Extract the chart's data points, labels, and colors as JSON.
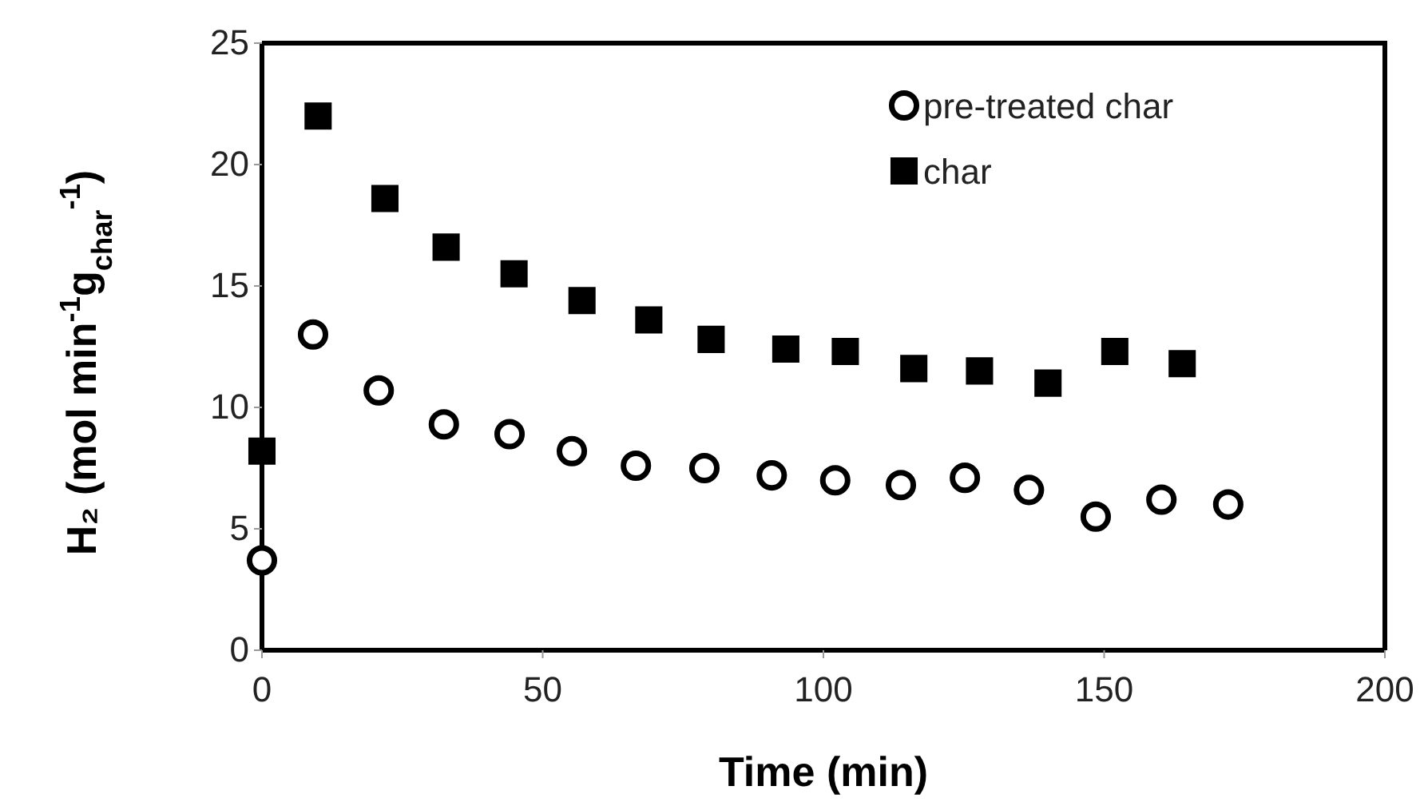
{
  "chart_data": {
    "type": "scatter",
    "xlabel": "Time (min)",
    "ylabel": "H₂ (mol min$^{-1}$g$_{char}$$^{-1}$)",
    "xlim": [
      0,
      200
    ],
    "xticks": [
      0,
      50,
      100,
      150,
      200
    ],
    "ylim": [
      0,
      25
    ],
    "yticks": [
      0,
      5,
      10,
      15,
      20,
      25
    ],
    "grid": false,
    "legend": "top right",
    "series": [
      {
        "name": "pre-treated char",
        "color": "#000000",
        "marker": "circle",
        "x": [
          0,
          9.1,
          20.8,
          32.4,
          44.1,
          55.2,
          66.6,
          78.8,
          90.8,
          102.1,
          113.8,
          125.2,
          136.6,
          148.5,
          160.2,
          172.1
        ],
        "values": [
          3.7,
          13.0,
          10.7,
          9.3,
          8.9,
          8.2,
          7.6,
          7.5,
          7.2,
          7.0,
          6.8,
          7.1,
          6.6,
          5.5,
          6.2,
          6.0
        ]
      },
      {
        "name": "char",
        "color": "#000000",
        "marker": "square",
        "x": [
          0,
          10.0,
          21.9,
          32.8,
          44.9,
          57.0,
          68.9,
          80.0,
          93.3,
          103.9,
          116.1,
          127.8,
          140.0,
          151.9,
          163.9
        ],
        "values": [
          8.2,
          22.0,
          18.6,
          16.6,
          15.5,
          14.4,
          13.6,
          12.8,
          12.4,
          12.3,
          11.6,
          11.5,
          11.0,
          12.3,
          11.8
        ]
      }
    ]
  }
}
